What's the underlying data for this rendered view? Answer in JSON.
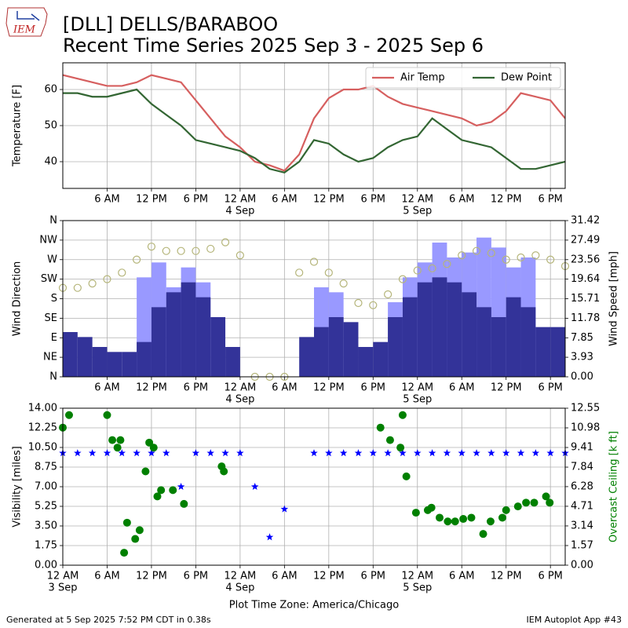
{
  "title": "[DLL] DELLS/BARABOO",
  "subtitle": "Recent Time Series 2025 Sep 3 - 2025 Sep 6",
  "logo_text": "IEM",
  "footer_left": "Generated at 5 Sep 2025 7:52 PM CDT in 0.38s",
  "footer_right": "IEM Autoplot App #43",
  "chart_data": [
    {
      "type": "line",
      "ylabel": "Temperature [F]",
      "xlim": [
        0,
        68
      ],
      "ylim": [
        32.6,
        67.4
      ],
      "yticks": [
        40,
        50,
        60
      ],
      "xticks": [
        {
          "value": 6,
          "label": "6 AM"
        },
        {
          "value": 12,
          "label": "12 PM"
        },
        {
          "value": 18,
          "label": "6 PM"
        },
        {
          "value": 24,
          "label": "12 AM",
          "sublabel": "4 Sep"
        },
        {
          "value": 30,
          "label": "6 AM"
        },
        {
          "value": 36,
          "label": "12 PM"
        },
        {
          "value": 42,
          "label": "6 PM"
        },
        {
          "value": 48,
          "label": "12 AM",
          "sublabel": "5 Sep"
        },
        {
          "value": 54,
          "label": "6 AM"
        },
        {
          "value": 60,
          "label": "12 PM"
        },
        {
          "value": 66,
          "label": "6 PM"
        }
      ],
      "grid": true,
      "legend": "upper right",
      "x": [
        0,
        2,
        4,
        6,
        8,
        10,
        12,
        14,
        16,
        18,
        20,
        22,
        24,
        26,
        28,
        30,
        32,
        34,
        36,
        38,
        40,
        42,
        44,
        46,
        48,
        50,
        52,
        54,
        56,
        58,
        60,
        62,
        64,
        66,
        68
      ],
      "series": [
        {
          "name": "Air Temp",
          "kind": "line",
          "color": "#d65f5f",
          "values": [
            64,
            63,
            62,
            61,
            61,
            62,
            64,
            63,
            62,
            57,
            52,
            47,
            44,
            40,
            39,
            37.5,
            42,
            52,
            57.6,
            60,
            60,
            61,
            58,
            56,
            55,
            54,
            53,
            52,
            50,
            51,
            54,
            59,
            58,
            57,
            52
          ]
        },
        {
          "name": "Dew Point",
          "kind": "line",
          "color": "#336633",
          "values": [
            59,
            59,
            58,
            58,
            59,
            60,
            56,
            53,
            50,
            46,
            45,
            44,
            43,
            41,
            38,
            37,
            40,
            46,
            45,
            42,
            40,
            41,
            44,
            46,
            47,
            52,
            49,
            46,
            45,
            44,
            41,
            38,
            38,
            39,
            40
          ]
        }
      ]
    },
    {
      "type": "combo",
      "ylabel": "Wind Direction",
      "y2label": "Wind Speed [mph]",
      "xlim": [
        0,
        68
      ],
      "ylim": [
        0,
        360
      ],
      "yticks": [
        {
          "value": 0,
          "label": "N"
        },
        {
          "value": 45,
          "label": "NE"
        },
        {
          "value": 90,
          "label": "E"
        },
        {
          "value": 135,
          "label": "SE"
        },
        {
          "value": 180,
          "label": "S"
        },
        {
          "value": 225,
          "label": "SW"
        },
        {
          "value": 270,
          "label": "W"
        },
        {
          "value": 315,
          "label": "NW"
        },
        {
          "value": 360,
          "label": "N"
        }
      ],
      "y2lim": [
        0,
        31.42
      ],
      "y2ticks": [
        {
          "value": 0,
          "label": "0.00"
        },
        3.93,
        7.85,
        11.78,
        15.71,
        19.64,
        23.56,
        27.49,
        31.42
      ],
      "xticks": [
        {
          "value": 6,
          "label": "6 AM"
        },
        {
          "value": 12,
          "label": "12 PM"
        },
        {
          "value": 18,
          "label": "6 PM"
        },
        {
          "value": 24,
          "label": "12 AM",
          "sublabel": "4 Sep"
        },
        {
          "value": 30,
          "label": "6 AM"
        },
        {
          "value": 36,
          "label": "12 PM"
        },
        {
          "value": 42,
          "label": "6 PM"
        },
        {
          "value": 48,
          "label": "12 AM",
          "sublabel": "5 Sep"
        },
        {
          "value": 54,
          "label": "6 AM"
        },
        {
          "value": 60,
          "label": "12 PM"
        },
        {
          "value": 66,
          "label": "6 PM"
        }
      ],
      "grid": true,
      "x": [
        0,
        2,
        4,
        6,
        8,
        10,
        12,
        14,
        16,
        18,
        20,
        22,
        24,
        26,
        28,
        30,
        32,
        34,
        36,
        38,
        40,
        42,
        44,
        46,
        48,
        50,
        52,
        54,
        56,
        58,
        60,
        62,
        64,
        66,
        68
      ],
      "series": [
        {
          "kind": "bar",
          "axis": "y2",
          "color": "#9999ff",
          "values": [
            null,
            null,
            null,
            null,
            null,
            20,
            23,
            18,
            22,
            19,
            null,
            null,
            null,
            null,
            null,
            null,
            null,
            18,
            17,
            null,
            null,
            null,
            15,
            20,
            23,
            27,
            24,
            25,
            28,
            26,
            22,
            24,
            null,
            null,
            null
          ]
        },
        {
          "kind": "bar",
          "axis": "y2",
          "color": "#333399",
          "values": [
            9,
            8,
            6,
            5,
            5,
            7,
            14,
            17,
            19,
            16,
            12,
            6,
            0,
            0,
            0,
            0,
            8,
            10,
            12,
            11,
            6,
            7,
            12,
            16,
            19,
            20,
            19,
            17,
            14,
            12,
            16,
            14,
            10,
            10,
            7
          ]
        },
        {
          "kind": "scatter",
          "marker": "open-circle",
          "color": "#b5b57a",
          "values": [
            205,
            205,
            215,
            225,
            240,
            270,
            300,
            290,
            290,
            290,
            295,
            310,
            280,
            0,
            0,
            0,
            240,
            265,
            240,
            215,
            170,
            165,
            190,
            225,
            245,
            250,
            260,
            280,
            290,
            285,
            270,
            275,
            280,
            270,
            255
          ]
        }
      ]
    },
    {
      "type": "combo",
      "ylabel": "Visibility [miles]",
      "y2label": "Overcast Ceiling [k ft]",
      "y2label_color": "#008000",
      "xlabel": "Plot Time Zone: America/Chicago",
      "xlim": [
        0,
        68
      ],
      "ylim": [
        0,
        14
      ],
      "yticks": [
        {
          "value": 0,
          "label": "0.00"
        },
        1.75,
        {
          "value": 3.5,
          "label": "3.50"
        },
        5.25,
        {
          "value": 7,
          "label": "7.00"
        },
        8.75,
        {
          "value": 10.5,
          "label": "10.50"
        },
        12.25,
        {
          "value": 14,
          "label": "14.00"
        }
      ],
      "y2lim": [
        0,
        12.55
      ],
      "y2ticks": [
        {
          "value": 0,
          "label": "0.00"
        },
        1.57,
        3.14,
        4.71,
        6.28,
        7.84,
        9.41,
        10.98,
        12.55
      ],
      "xticks": [
        {
          "value": 0,
          "label": "12 AM",
          "sublabel": "3 Sep"
        },
        {
          "value": 6,
          "label": "6 AM"
        },
        {
          "value": 12,
          "label": "12 PM"
        },
        {
          "value": 18,
          "label": "6 PM"
        },
        {
          "value": 24,
          "label": "12 AM",
          "sublabel": "4 Sep"
        },
        {
          "value": 30,
          "label": "6 AM"
        },
        {
          "value": 36,
          "label": "12 PM"
        },
        {
          "value": 42,
          "label": "6 PM"
        },
        {
          "value": 48,
          "label": "12 AM",
          "sublabel": "5 Sep"
        },
        {
          "value": 54,
          "label": "6 AM"
        },
        {
          "value": 60,
          "label": "12 PM"
        },
        {
          "value": 66,
          "label": "6 PM"
        }
      ],
      "grid": true,
      "series": [
        {
          "kind": "scatter",
          "marker": "star",
          "color": "#0000ff",
          "x": [
            0,
            2,
            4,
            6,
            8,
            10,
            12,
            14,
            16,
            18,
            20,
            22,
            24,
            26,
            28,
            30,
            32,
            34,
            36,
            38,
            40,
            42,
            44,
            46,
            48,
            50,
            52,
            54,
            56,
            58,
            60,
            62,
            64,
            66,
            68
          ],
          "values": [
            10,
            10,
            10,
            10,
            10,
            10,
            10,
            10,
            7,
            10,
            10,
            10,
            10,
            7,
            2.5,
            5,
            null,
            10,
            10,
            10,
            10,
            10,
            10,
            10,
            10,
            10,
            10,
            10,
            10,
            10,
            10,
            10,
            10,
            10,
            10
          ]
        },
        {
          "kind": "scatter",
          "marker": "dot",
          "axis": "y2",
          "color": "#008000",
          "x": [
            0,
            0.85,
            6,
            6.7,
            7.4,
            7.8,
            8.3,
            8.7,
            9.8,
            10.4,
            11.2,
            11.7,
            12.3,
            12.8,
            13.3,
            14.9,
            16.4,
            21.5,
            21.8,
            43,
            44.3,
            45.7,
            46,
            46.5,
            47.8,
            49.4,
            49.9,
            51,
            52.1,
            53.1,
            54.2,
            55.3,
            56.9,
            57.9,
            59.5,
            60,
            61.6,
            62.7,
            63.8,
            65.4,
            65.9
          ],
          "values": [
            11,
            12,
            12,
            10,
            9.4,
            10,
            1,
            3.4,
            2.1,
            2.8,
            7.5,
            9.8,
            9.4,
            5.5,
            6,
            6,
            4.9,
            7.9,
            7.5,
            11,
            10,
            9.4,
            12,
            7.1,
            4.2,
            4.4,
            4.6,
            3.8,
            3.5,
            3.5,
            3.7,
            3.8,
            2.5,
            3.5,
            3.8,
            4.4,
            4.7,
            5,
            5,
            5.5,
            5
          ]
        }
      ]
    }
  ]
}
